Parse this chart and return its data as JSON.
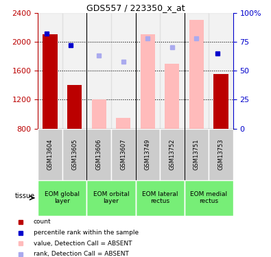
{
  "title": "GDS557 / 223350_x_at",
  "samples": [
    "GSM13604",
    "GSM13605",
    "GSM13606",
    "GSM13607",
    "GSM13749",
    "GSM13752",
    "GSM13751",
    "GSM13753"
  ],
  "ylim_left": [
    800,
    2400
  ],
  "ylim_right": [
    0,
    100
  ],
  "yticks_left": [
    800,
    1200,
    1600,
    2000,
    2400
  ],
  "yticks_right": [
    0,
    25,
    50,
    75,
    100
  ],
  "count_bars": {
    "GSM13604": 2100,
    "GSM13605": 1400,
    "GSM13753": 1550
  },
  "absent_value_bars": {
    "GSM13606": 1200,
    "GSM13607": 950,
    "GSM13749": 2100,
    "GSM13752": 1700,
    "GSM13751": 2300
  },
  "rank_dots_present": {
    "GSM13604": 82,
    "GSM13605": 72,
    "GSM13753": 65
  },
  "rank_dots_absent": {
    "GSM13606": 63,
    "GSM13607": 58,
    "GSM13749": 78,
    "GSM13752": 70,
    "GSM13751": 78
  },
  "tissue_groups": [
    {
      "label": "EOM global\nlayer",
      "samples": [
        "GSM13604",
        "GSM13605"
      ]
    },
    {
      "label": "EOM orbital\nlayer",
      "samples": [
        "GSM13606",
        "GSM13607"
      ]
    },
    {
      "label": "EOM lateral\nrectus",
      "samples": [
        "GSM13749",
        "GSM13752"
      ]
    },
    {
      "label": "EOM medial\nrectus",
      "samples": [
        "GSM13751",
        "GSM13753"
      ]
    }
  ],
  "bar_bottom": 800,
  "count_color": "#bb0000",
  "absent_value_color": "#ffbbbb",
  "rank_present_color": "#0000cc",
  "rank_absent_color": "#aaaaee",
  "sample_bg_color": "#cccccc",
  "tissue_color": "#77ee77",
  "plot_bg": "#ffffff",
  "legend_items": [
    {
      "color": "#bb0000",
      "label": "count"
    },
    {
      "color": "#0000cc",
      "label": "percentile rank within the sample"
    },
    {
      "color": "#ffbbbb",
      "label": "value, Detection Call = ABSENT"
    },
    {
      "color": "#aaaaee",
      "label": "rank, Detection Call = ABSENT"
    }
  ]
}
